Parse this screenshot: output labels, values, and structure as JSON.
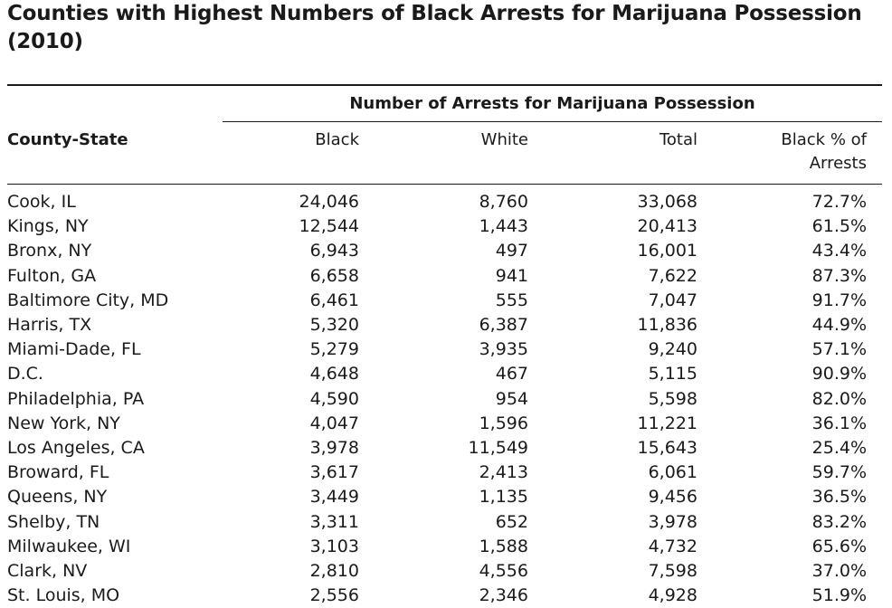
{
  "title": "Counties with Highest Numbers of Black Arrests for Marijuana Possession (2010)",
  "group_header": "Number of Arrests for Marijuana Possession",
  "columns": {
    "county": "County-State",
    "black": "Black",
    "white": "White",
    "total": "Total",
    "pct_line1": "Black % of",
    "pct_line2": "Arrests"
  },
  "rows": [
    {
      "county": "Cook, IL",
      "black": "24,046",
      "white": "8,760",
      "total": "33,068",
      "pct": "72.7%"
    },
    {
      "county": "Kings, NY",
      "black": "12,544",
      "white": "1,443",
      "total": "20,413",
      "pct": "61.5%"
    },
    {
      "county": "Bronx, NY",
      "black": "6,943",
      "white": "497",
      "total": "16,001",
      "pct": "43.4%"
    },
    {
      "county": "Fulton, GA",
      "black": "6,658",
      "white": "941",
      "total": "7,622",
      "pct": "87.3%"
    },
    {
      "county": "Baltimore City, MD",
      "black": "6,461",
      "white": "555",
      "total": "7,047",
      "pct": "91.7%"
    },
    {
      "county": "Harris, TX",
      "black": "5,320",
      "white": "6,387",
      "total": "11,836",
      "pct": "44.9%"
    },
    {
      "county": "Miami-Dade, FL",
      "black": "5,279",
      "white": "3,935",
      "total": "9,240",
      "pct": "57.1%"
    },
    {
      "county": "D.C.",
      "black": "4,648",
      "white": "467",
      "total": "5,115",
      "pct": "90.9%"
    },
    {
      "county": "Philadelphia, PA",
      "black": "4,590",
      "white": "954",
      "total": "5,598",
      "pct": "82.0%"
    },
    {
      "county": "New York, NY",
      "black": "4,047",
      "white": "1,596",
      "total": "11,221",
      "pct": "36.1%"
    },
    {
      "county": "Los Angeles, CA",
      "black": "3,978",
      "white": "11,549",
      "total": "15,643",
      "pct": "25.4%"
    },
    {
      "county": "Broward, FL",
      "black": "3,617",
      "white": "2,413",
      "total": "6,061",
      "pct": "59.7%"
    },
    {
      "county": "Queens, NY",
      "black": "3,449",
      "white": "1,135",
      "total": "9,456",
      "pct": "36.5%"
    },
    {
      "county": "Shelby, TN",
      "black": "3,311",
      "white": "652",
      "total": "3,978",
      "pct": "83.2%"
    },
    {
      "county": "Milwaukee, WI",
      "black": "3,103",
      "white": "1,588",
      "total": "4,732",
      "pct": "65.6%"
    },
    {
      "county": "Clark, NV",
      "black": "2,810",
      "white": "4,556",
      "total": "7,598",
      "pct": "37.0%"
    },
    {
      "county": "St. Louis, MO",
      "black": "2,556",
      "white": "2,346",
      "total": "4,928",
      "pct": "51.9%"
    }
  ]
}
